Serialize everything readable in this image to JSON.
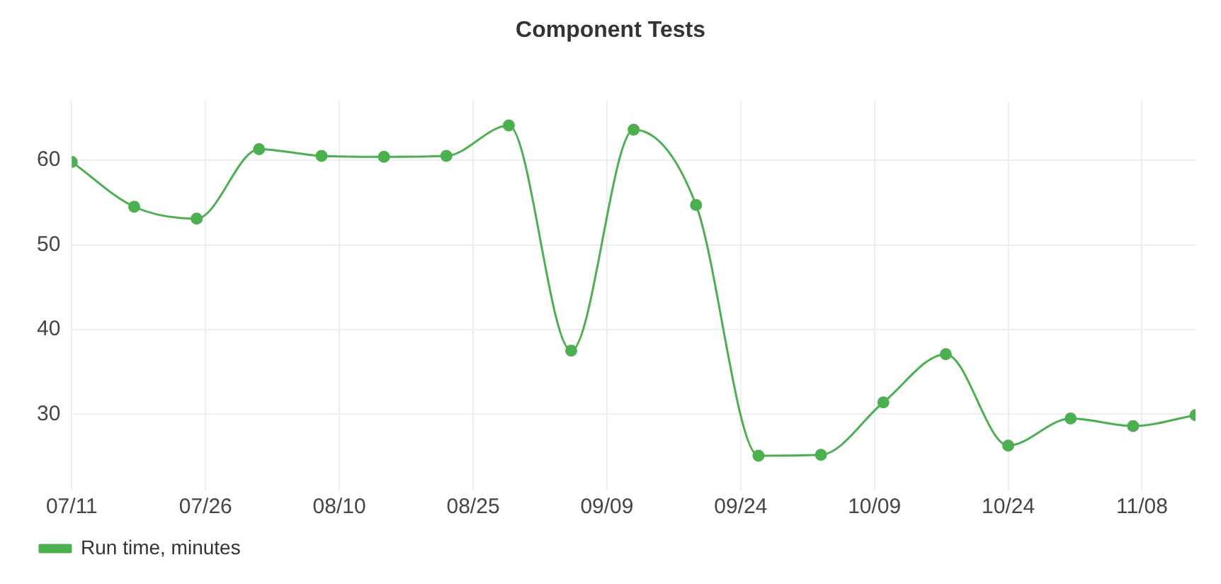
{
  "chart_data": {
    "type": "line",
    "title": "Component Tests",
    "x": [
      "--07-11",
      "--07-18",
      "--07-25",
      "--08-01",
      "--08-08",
      "--08-15",
      "--08-22",
      "--08-29",
      "--09-05",
      "--09-12",
      "--09-19",
      "--09-26",
      "--10-03",
      "--10-10",
      "--10-17",
      "--10-24",
      "--10-31",
      "--11-07",
      "--11-14"
    ],
    "series": [
      {
        "name": "Run time, minutes",
        "color": "#4caf50",
        "values": [
          59.8,
          54.5,
          53.1,
          61.3,
          60.5,
          60.4,
          60.5,
          64.1,
          37.5,
          63.6,
          54.7,
          25.1,
          25.2,
          31.4,
          37.1,
          26.3,
          29.5,
          28.6,
          29.9
        ]
      }
    ],
    "xlim": [
      "--07-11",
      "--11-14"
    ],
    "xticks": [
      {
        "value": "--07-11",
        "label": "07/11"
      },
      {
        "value": "--07-26",
        "label": "07/26"
      },
      {
        "value": "--08-10",
        "label": "08/10"
      },
      {
        "value": "--08-25",
        "label": "08/25"
      },
      {
        "value": "--09-09",
        "label": "09/09"
      },
      {
        "value": "--09-24",
        "label": "09/24"
      },
      {
        "value": "--10-09",
        "label": "10/09"
      },
      {
        "value": "--10-24",
        "label": "10/24"
      },
      {
        "value": "--11-08",
        "label": "11/08"
      }
    ],
    "ylim": [
      21,
      67
    ],
    "yticks": [
      30,
      40,
      50,
      60
    ],
    "grid": true,
    "legend": "bottom left",
    "marker": "circle",
    "line_style": "solid"
  }
}
